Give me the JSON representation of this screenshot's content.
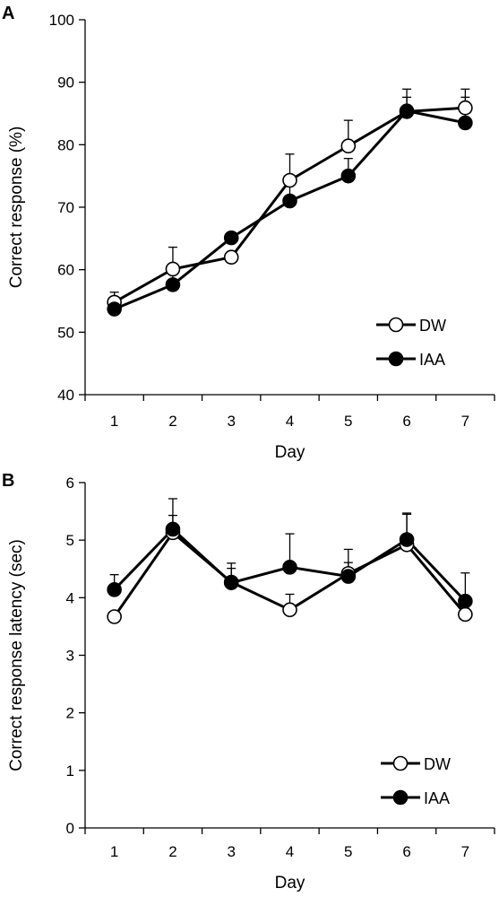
{
  "chart_data": [
    {
      "panel_label": "A",
      "type": "line",
      "xlabel": "Day",
      "ylabel": "Correct response (%)",
      "x": [
        1,
        2,
        3,
        4,
        5,
        6,
        7
      ],
      "xlim": [
        0.5,
        7.5
      ],
      "ylim": [
        40,
        100
      ],
      "yticks": [
        40,
        50,
        60,
        70,
        80,
        90,
        100
      ],
      "grid": false,
      "legend_position": "bottom-right",
      "series": [
        {
          "name": "DW",
          "marker": "open-circle",
          "values": [
            54.8,
            60.1,
            62.0,
            74.3,
            79.8,
            85.3,
            85.9
          ],
          "errors": [
            1.6,
            3.5,
            0,
            4.2,
            4.1,
            3.6,
            3.0
          ]
        },
        {
          "name": "IAA",
          "marker": "filled-circle",
          "values": [
            53.7,
            57.6,
            65.1,
            71.0,
            75.0,
            85.4,
            83.5
          ],
          "errors": [
            0,
            2.0,
            0,
            3.6,
            2.8,
            2.2,
            4.1
          ]
        }
      ]
    },
    {
      "panel_label": "B",
      "type": "line",
      "xlabel": "Day",
      "ylabel": "Correct response latency (sec)",
      "x": [
        1,
        2,
        3,
        4,
        5,
        6,
        7
      ],
      "xlim": [
        0.5,
        7.5
      ],
      "ylim": [
        0,
        6
      ],
      "yticks": [
        0,
        1,
        2,
        3,
        4,
        5,
        6
      ],
      "grid": false,
      "legend_position": "bottom-right",
      "series": [
        {
          "name": "DW",
          "marker": "open-circle",
          "values": [
            3.67,
            5.13,
            4.27,
            3.79,
            4.42,
            4.92,
            3.71
          ],
          "errors": [
            0,
            0.3,
            0.33,
            0.27,
            0.42,
            0.55,
            0
          ]
        },
        {
          "name": "IAA",
          "marker": "filled-circle",
          "values": [
            4.14,
            5.19,
            4.26,
            4.53,
            4.37,
            5.01,
            3.94
          ],
          "errors": [
            0.26,
            0.53,
            0.25,
            0.58,
            0.24,
            0.44,
            0.49
          ]
        }
      ]
    }
  ]
}
